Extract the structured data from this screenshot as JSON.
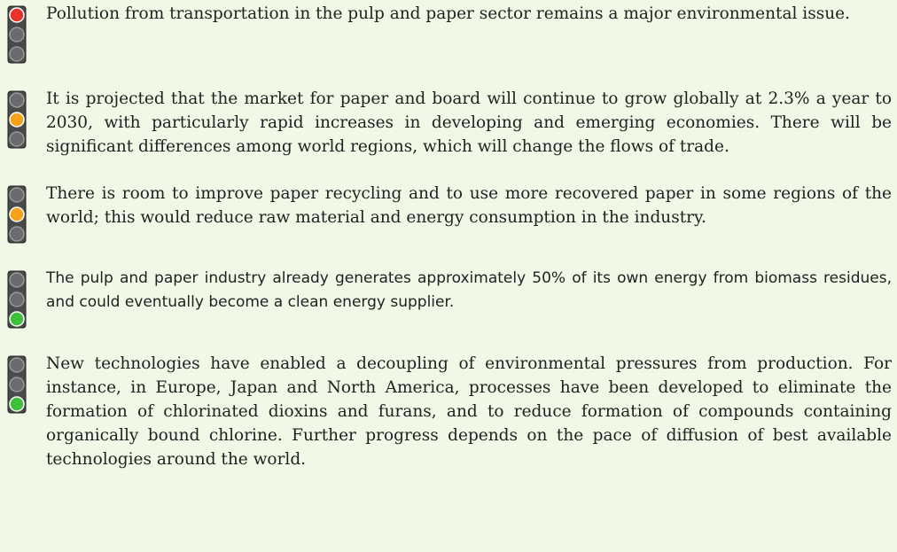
{
  "items": [
    {
      "light": "red",
      "text": "Pollution from transportation in the pulp and paper sector remains a major environmental issue."
    },
    {
      "light": "amber",
      "text": "It is projected that the market for paper and board will continue to grow globally at 2.3% a year to 2030, with particularly rapid increases in developing and emerging economies. There will be significant differences among world regions, which will change the flows of trade."
    },
    {
      "light": "amber",
      "text": "There is room to improve paper recycling and to use more recovered paper in some regions of the world; this would reduce raw material and energy consumption in the industry."
    },
    {
      "light": "green",
      "text": "The pulp and paper industry already generates approximately 50% of its own energy from biomass residues, and could eventually become a clean energy supplier."
    },
    {
      "light": "green",
      "text": "New technologies have enabled a decoupling of environmental pressures from production. For instance, in Europe, Japan and North America, processes have been developed to eliminate the formation of chlorinated dioxins and furans, and to reduce formation of compounds containing organically bound chlorine. Further progress depends on the pace of diffusion of best available technologies around the world."
    }
  ]
}
